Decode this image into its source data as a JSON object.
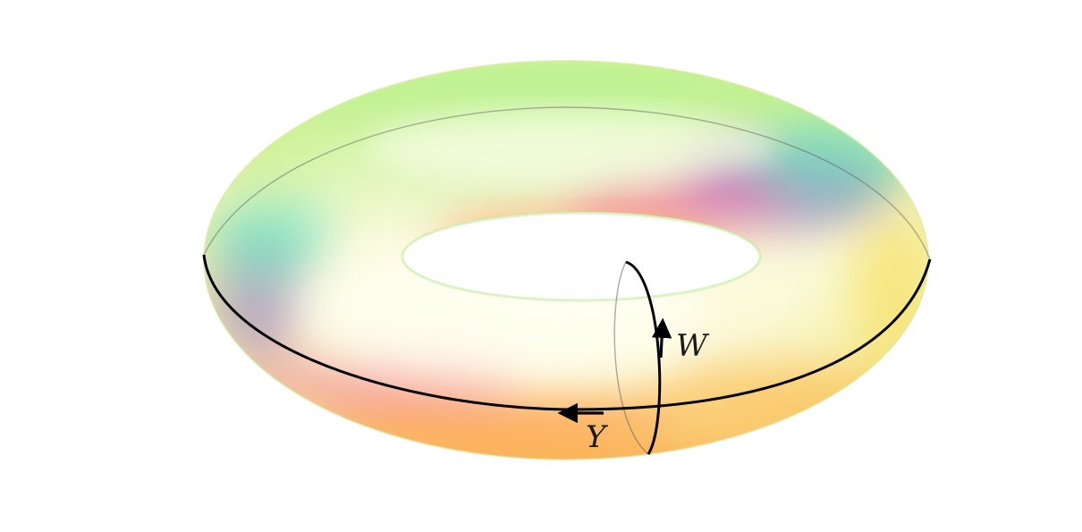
{
  "figure": {
    "subject": "torus",
    "colors": {
      "base": "#fbf9d6",
      "green": "#9df07a",
      "yellow": "#f7f08a",
      "orange": "#ff8a3d",
      "pink": "#f27aa8",
      "purple": "#8d6cc8",
      "cyan": "#6fe3c0",
      "cycle_stroke": "#000000"
    }
  },
  "cycles": {
    "longitude": {
      "label": "Y"
    },
    "meridian": {
      "label": "W"
    }
  }
}
